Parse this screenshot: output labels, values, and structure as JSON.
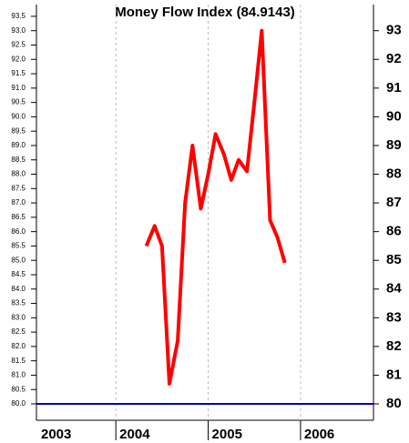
{
  "chart_data": {
    "type": "line",
    "title": "Money Flow Index (84.9143)",
    "x": [
      2004.33,
      2004.42,
      2004.5,
      2004.58,
      2004.67,
      2004.75,
      2004.83,
      2004.92,
      2005.0,
      2005.08,
      2005.17,
      2005.25,
      2005.33,
      2005.42,
      2005.5,
      2005.58,
      2005.67,
      2005.75,
      2005.83
    ],
    "series": [
      {
        "color": "#ff0000",
        "values": [
          85.5,
          86.2,
          85.5,
          80.7,
          82.2,
          87.0,
          89.0,
          86.8,
          88.0,
          89.4,
          88.7,
          87.8,
          88.5,
          88.1,
          90.5,
          93.0,
          86.4,
          85.8,
          84.9143
        ]
      }
    ],
    "reference_line": {
      "value": 80,
      "color": "#0000cc"
    },
    "xlim": [
      2003.14,
      2006.79
    ],
    "xticks": [
      2003,
      2004,
      2005,
      2006
    ],
    "ylim": [
      79.43,
      93.91
    ],
    "yticks": [
      {
        "value": 80,
        "label": "80.0"
      },
      {
        "value": 80.5,
        "label": "80.5"
      },
      {
        "value": 81,
        "label": "81.0"
      },
      {
        "value": 81.5,
        "label": "81.5"
      },
      {
        "value": 82,
        "label": "82.0"
      },
      {
        "value": 82.5,
        "label": "82.5"
      },
      {
        "value": 83,
        "label": "83.0"
      },
      {
        "value": 83.5,
        "label": "83.5"
      },
      {
        "value": 84,
        "label": "84.0"
      },
      {
        "value": 84.5,
        "label": "84.5"
      },
      {
        "value": 85,
        "label": "85.0"
      },
      {
        "value": 85.5,
        "label": "85.5"
      },
      {
        "value": 86,
        "label": "86.0"
      },
      {
        "value": 86.5,
        "label": "86.5"
      },
      {
        "value": 87,
        "label": "87.0"
      },
      {
        "value": 87.5,
        "label": "87.5"
      },
      {
        "value": 88,
        "label": "88.0"
      },
      {
        "value": 88.5,
        "label": "88.5"
      },
      {
        "value": 89,
        "label": "89.0"
      },
      {
        "value": 89.5,
        "label": "89.5"
      },
      {
        "value": 90,
        "label": "90.0"
      },
      {
        "value": 90.5,
        "label": "90.5"
      },
      {
        "value": 91,
        "label": "91.0"
      },
      {
        "value": 91.5,
        "label": "91.5"
      },
      {
        "value": 92,
        "label": "92.0"
      },
      {
        "value": 92.5,
        "label": "92.5"
      },
      {
        "value": 93,
        "label": "93.0"
      },
      {
        "value": 93.5,
        "label": "93.5"
      }
    ],
    "y2lim": [
      79.43,
      93.91
    ],
    "y2ticks": [
      80,
      81,
      82,
      83,
      84,
      85,
      86,
      87,
      88,
      89,
      90,
      91,
      92,
      93
    ],
    "grid": true
  }
}
